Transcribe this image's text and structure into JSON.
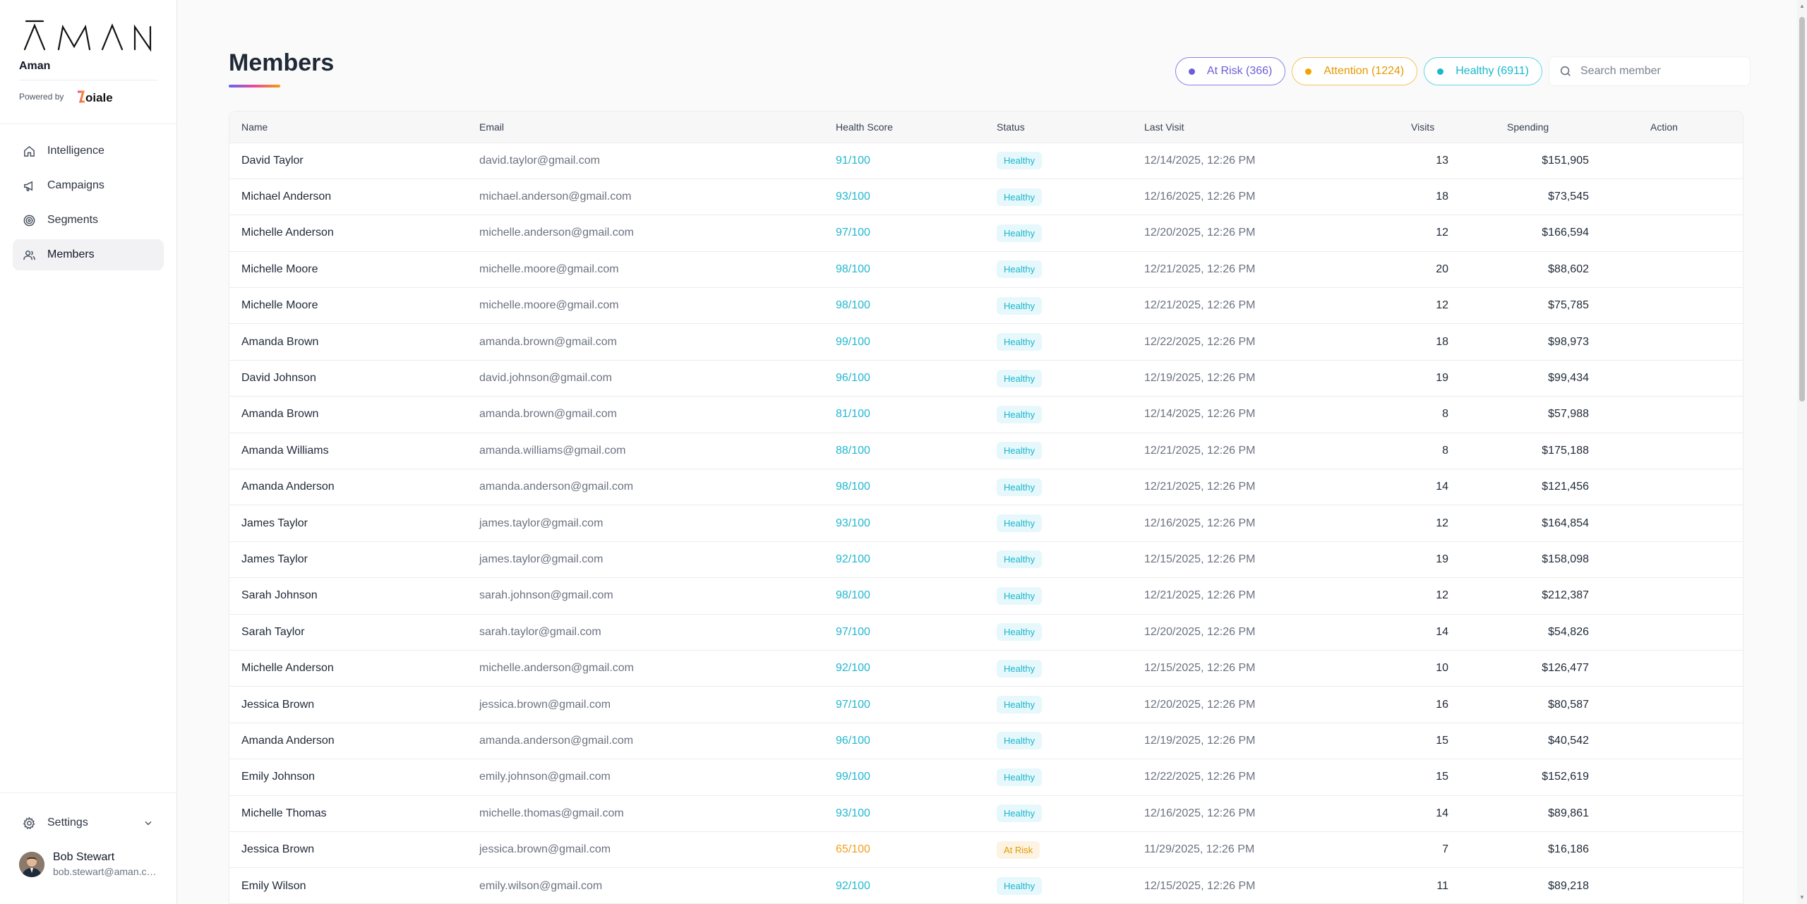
{
  "brand": {
    "logo_text": "ĀMAN",
    "name": "Aman",
    "powered_by": "Powered by",
    "partner_logo_text": "Loiale"
  },
  "nav": [
    {
      "label": "Intelligence",
      "icon": "home-icon"
    },
    {
      "label": "Campaigns",
      "icon": "megaphone-icon"
    },
    {
      "label": "Segments",
      "icon": "target-icon"
    },
    {
      "label": "Members",
      "icon": "users-icon",
      "active": true
    }
  ],
  "settings": {
    "label": "Settings",
    "icon": "gear-icon"
  },
  "user": {
    "name": "Bob Stewart",
    "email": "bob.stewart@aman.com"
  },
  "page": {
    "title": "Members"
  },
  "filters": {
    "at_risk": "At Risk (366)",
    "attention": "Attention (1224)",
    "healthy": "Healthy (6911)"
  },
  "search": {
    "placeholder": "Search member",
    "value": ""
  },
  "table": {
    "columns": [
      "Name",
      "Email",
      "Health Score",
      "Status",
      "Last Visit",
      "Visits",
      "Spending",
      "Action"
    ],
    "rows": [
      {
        "name": "David Taylor",
        "email": "david.taylor@gmail.com",
        "score": "91/100",
        "status": "Healthy",
        "last_visit": "12/14/2025, 12:26 PM",
        "visits": "13",
        "spending": "$151,905"
      },
      {
        "name": "Michael Anderson",
        "email": "michael.anderson@gmail.com",
        "score": "93/100",
        "status": "Healthy",
        "last_visit": "12/16/2025, 12:26 PM",
        "visits": "18",
        "spending": "$73,545"
      },
      {
        "name": "Michelle Anderson",
        "email": "michelle.anderson@gmail.com",
        "score": "97/100",
        "status": "Healthy",
        "last_visit": "12/20/2025, 12:26 PM",
        "visits": "12",
        "spending": "$166,594"
      },
      {
        "name": "Michelle Moore",
        "email": "michelle.moore@gmail.com",
        "score": "98/100",
        "status": "Healthy",
        "last_visit": "12/21/2025, 12:26 PM",
        "visits": "20",
        "spending": "$88,602"
      },
      {
        "name": "Michelle Moore",
        "email": "michelle.moore@gmail.com",
        "score": "98/100",
        "status": "Healthy",
        "last_visit": "12/21/2025, 12:26 PM",
        "visits": "12",
        "spending": "$75,785"
      },
      {
        "name": "Amanda Brown",
        "email": "amanda.brown@gmail.com",
        "score": "99/100",
        "status": "Healthy",
        "last_visit": "12/22/2025, 12:26 PM",
        "visits": "18",
        "spending": "$98,973"
      },
      {
        "name": "David Johnson",
        "email": "david.johnson@gmail.com",
        "score": "96/100",
        "status": "Healthy",
        "last_visit": "12/19/2025, 12:26 PM",
        "visits": "19",
        "spending": "$99,434"
      },
      {
        "name": "Amanda Brown",
        "email": "amanda.brown@gmail.com",
        "score": "81/100",
        "status": "Healthy",
        "last_visit": "12/14/2025, 12:26 PM",
        "visits": "8",
        "spending": "$57,988"
      },
      {
        "name": "Amanda Williams",
        "email": "amanda.williams@gmail.com",
        "score": "88/100",
        "status": "Healthy",
        "last_visit": "12/21/2025, 12:26 PM",
        "visits": "8",
        "spending": "$175,188"
      },
      {
        "name": "Amanda Anderson",
        "email": "amanda.anderson@gmail.com",
        "score": "98/100",
        "status": "Healthy",
        "last_visit": "12/21/2025, 12:26 PM",
        "visits": "14",
        "spending": "$121,456"
      },
      {
        "name": "James Taylor",
        "email": "james.taylor@gmail.com",
        "score": "93/100",
        "status": "Healthy",
        "last_visit": "12/16/2025, 12:26 PM",
        "visits": "12",
        "spending": "$164,854"
      },
      {
        "name": "James Taylor",
        "email": "james.taylor@gmail.com",
        "score": "92/100",
        "status": "Healthy",
        "last_visit": "12/15/2025, 12:26 PM",
        "visits": "19",
        "spending": "$158,098"
      },
      {
        "name": "Sarah Johnson",
        "email": "sarah.johnson@gmail.com",
        "score": "98/100",
        "status": "Healthy",
        "last_visit": "12/21/2025, 12:26 PM",
        "visits": "12",
        "spending": "$212,387"
      },
      {
        "name": "Sarah Taylor",
        "email": "sarah.taylor@gmail.com",
        "score": "97/100",
        "status": "Healthy",
        "last_visit": "12/20/2025, 12:26 PM",
        "visits": "14",
        "spending": "$54,826"
      },
      {
        "name": "Michelle Anderson",
        "email": "michelle.anderson@gmail.com",
        "score": "92/100",
        "status": "Healthy",
        "last_visit": "12/15/2025, 12:26 PM",
        "visits": "10",
        "spending": "$126,477"
      },
      {
        "name": "Jessica Brown",
        "email": "jessica.brown@gmail.com",
        "score": "97/100",
        "status": "Healthy",
        "last_visit": "12/20/2025, 12:26 PM",
        "visits": "16",
        "spending": "$80,587"
      },
      {
        "name": "Amanda Anderson",
        "email": "amanda.anderson@gmail.com",
        "score": "96/100",
        "status": "Healthy",
        "last_visit": "12/19/2025, 12:26 PM",
        "visits": "15",
        "spending": "$40,542"
      },
      {
        "name": "Emily Johnson",
        "email": "emily.johnson@gmail.com",
        "score": "99/100",
        "status": "Healthy",
        "last_visit": "12/22/2025, 12:26 PM",
        "visits": "15",
        "spending": "$152,619"
      },
      {
        "name": "Michelle Thomas",
        "email": "michelle.thomas@gmail.com",
        "score": "93/100",
        "status": "Healthy",
        "last_visit": "12/16/2025, 12:26 PM",
        "visits": "14",
        "spending": "$89,861"
      },
      {
        "name": "Jessica Brown",
        "email": "jessica.brown@gmail.com",
        "score": "65/100",
        "status": "At Risk",
        "last_visit": "11/29/2025, 12:26 PM",
        "visits": "7",
        "spending": "$16,186"
      },
      {
        "name": "Emily Wilson",
        "email": "emily.wilson@gmail.com",
        "score": "92/100",
        "status": "Healthy",
        "last_visit": "12/15/2025, 12:26 PM",
        "visits": "11",
        "spending": "$89,218"
      }
    ]
  },
  "colors": {
    "healthy": "#22b8cf",
    "at_risk": "#f0a020",
    "attention": "#f0a500",
    "accent_risk_chip": "#6b5ed8"
  }
}
